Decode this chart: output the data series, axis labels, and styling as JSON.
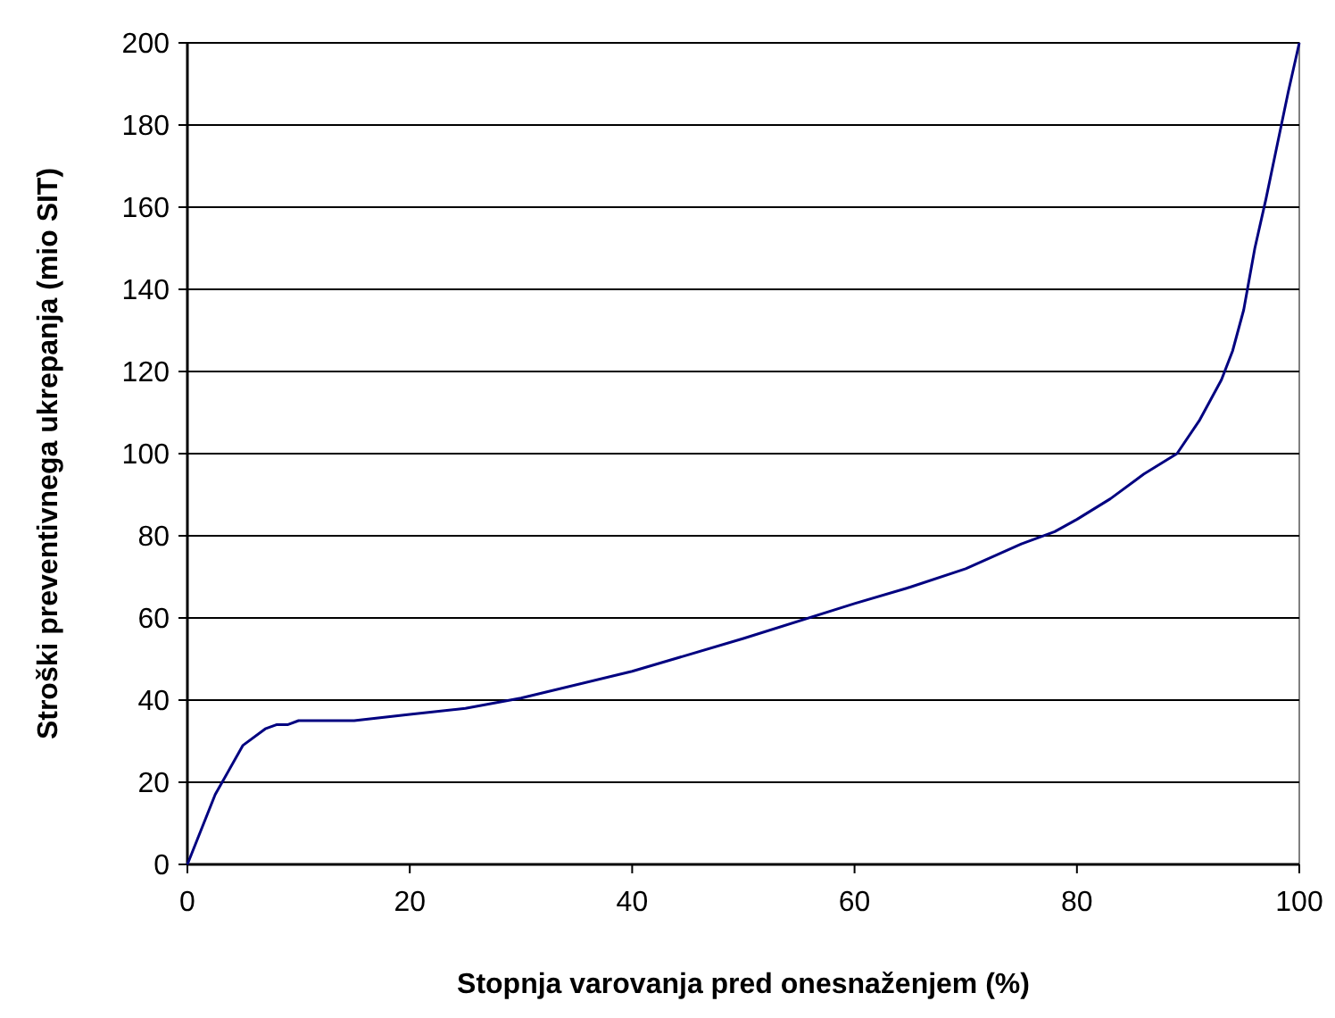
{
  "chart_data": {
    "type": "line",
    "xlabel": "Stopnja varovanja pred onesnaženjem (%)",
    "ylabel": "Stroški preventivnega ukrepanja (mio SIT)",
    "x": [
      0,
      2.5,
      5,
      7,
      8,
      9,
      10,
      15,
      20,
      25,
      30,
      40,
      50,
      60,
      65,
      70,
      75,
      78,
      80,
      83,
      86,
      89,
      91,
      93,
      94,
      95,
      96,
      97,
      98,
      99,
      100
    ],
    "series": [
      {
        "color": "#000080",
        "values": [
          0,
          17,
          29,
          33,
          34,
          34,
          35,
          35,
          36.5,
          38,
          40.5,
          47,
          55,
          63.5,
          67.5,
          72,
          78,
          81,
          84,
          89,
          95,
          100,
          108,
          118,
          125,
          135,
          150,
          162,
          175,
          188,
          200
        ]
      }
    ],
    "xlim": [
      0,
      100
    ],
    "xticks": [
      0,
      20,
      40,
      60,
      80,
      100
    ],
    "ylim": [
      0,
      200
    ],
    "yticks": [
      0,
      20,
      40,
      60,
      80,
      100,
      120,
      140,
      160,
      180,
      200
    ],
    "grid": "y",
    "marker": "none",
    "line_style": "solid"
  }
}
